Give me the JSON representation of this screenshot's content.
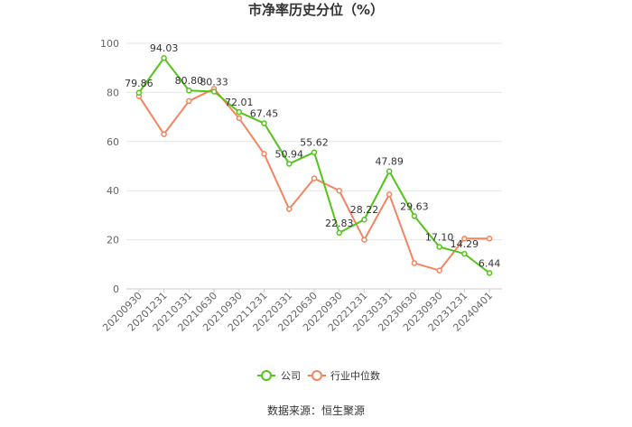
{
  "chart_data": {
    "type": "line",
    "title": "市净率历史分位（%）",
    "categories": [
      "20200930",
      "20201231",
      "20210331",
      "20210630",
      "20210930",
      "20211231",
      "20220331",
      "20220630",
      "20220930",
      "20221231",
      "20230331",
      "20230630",
      "20230930",
      "20231231",
      "20240401"
    ],
    "series": [
      {
        "name": "公司",
        "color": "#52c41a",
        "values": [
          79.86,
          94.03,
          80.8,
          80.33,
          72.01,
          67.45,
          50.94,
          55.62,
          22.83,
          28.22,
          47.89,
          29.63,
          17.1,
          14.29,
          6.44
        ],
        "labels": [
          "79.86",
          "94.03",
          "80.80",
          "80.33",
          "72.01",
          "67.45",
          "50.94",
          "55.62",
          "22.83",
          "28.22",
          "47.89",
          "29.63",
          "17.10",
          "14.29",
          "6.44"
        ]
      },
      {
        "name": "行业中位数",
        "color": "#f4845f",
        "values": [
          78.5,
          63.0,
          76.5,
          81.5,
          69.5,
          55.0,
          32.5,
          45.0,
          40.0,
          20.0,
          38.5,
          10.5,
          7.5,
          20.5,
          20.5
        ]
      }
    ],
    "ylim": [
      0,
      100
    ],
    "yticks": [
      "0",
      "20",
      "40",
      "60",
      "80",
      "100"
    ],
    "grid": true,
    "legend_position": "bottom-center",
    "source": "数据来源：恒生聚源"
  }
}
